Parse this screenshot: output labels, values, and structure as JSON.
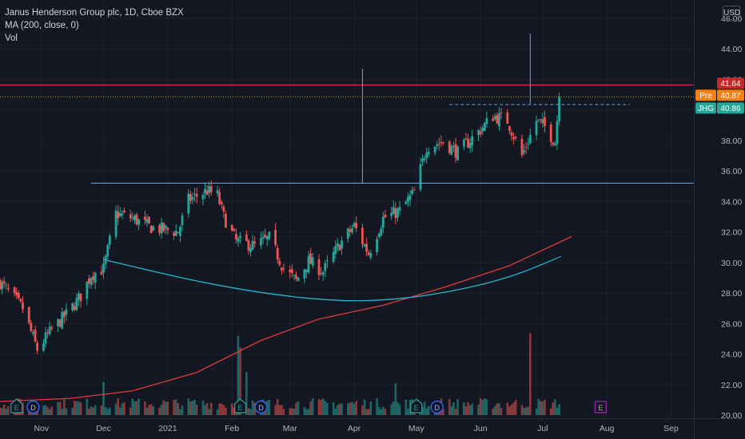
{
  "legend": {
    "symbol_line": "Janus Henderson Group plc, 1D, Cboe BZX",
    "ma_line": "MA (200, close, 0)",
    "vol_line": "Vol"
  },
  "currency_button": "USD",
  "colors": {
    "background": "#131722",
    "grid": "#1e222d",
    "up": "#26a69a",
    "down": "#ef5350",
    "ma": "#e03a3e",
    "pattern": "#2962ff",
    "trendline": "#5fa8e6",
    "cup": "#24b5d1",
    "resistance": "#e03a3e",
    "pre_tag": "#f57f17",
    "symbol_tag": "#26a69a",
    "price_tag_red": "#c62828",
    "earnings": "#26a69a",
    "dividend": "#2962ff",
    "upcoming_earnings": "#9c27b0"
  },
  "chart_data": {
    "type": "candlestick",
    "y_axis": {
      "ylim": [
        19.8,
        47.2
      ],
      "ticks": [
        "20.00",
        "22.00",
        "24.00",
        "26.00",
        "28.00",
        "30.00",
        "32.00",
        "34.00",
        "36.00",
        "38.00",
        "40.00",
        "42.00",
        "44.00",
        "46.00"
      ]
    },
    "x_axis": {
      "labels": [
        "Nov",
        "Dec",
        "2021",
        "Feb",
        "Mar",
        "Apr",
        "May",
        "Jun",
        "Jul",
        "Aug",
        "Sep"
      ],
      "label_dates": [
        "2020-11-01",
        "2020-12-01",
        "2021-01-01",
        "2021-02-01",
        "2021-03-01",
        "2021-04-01",
        "2021-05-01",
        "2021-06-01",
        "2021-07-01",
        "2021-08-01",
        "2021-09-01"
      ],
      "range": [
        "2020-10-12",
        "2021-09-12"
      ]
    },
    "price_tags": [
      {
        "label": "",
        "value": "41.64",
        "price": 41.64,
        "color": "#c62828"
      },
      {
        "label": "Pre",
        "value": "40.87",
        "price": 40.87,
        "color": "#f57f17"
      },
      {
        "label": "JHG",
        "value": "40.86",
        "price": 40.86,
        "color": "#26a69a"
      }
    ],
    "anchors": [
      [
        "2020-10-12",
        28.7
      ],
      [
        "2020-10-23",
        27.0
      ],
      [
        "2020-10-30",
        24.3
      ],
      [
        "2020-11-06",
        25.6
      ],
      [
        "2020-11-13",
        26.6
      ],
      [
        "2020-11-20",
        27.8
      ],
      [
        "2020-11-25",
        29.2
      ],
      [
        "2020-12-01",
        29.6
      ],
      [
        "2020-12-07",
        33.2
      ],
      [
        "2020-12-15",
        32.9
      ],
      [
        "2020-12-24",
        32.3
      ],
      [
        "2021-01-06",
        32.0
      ],
      [
        "2021-01-11",
        34.1
      ],
      [
        "2021-01-20",
        34.7
      ],
      [
        "2021-01-25",
        34.4
      ],
      [
        "2021-01-28",
        33.0
      ],
      [
        "2021-02-03",
        31.4
      ],
      [
        "2021-02-12",
        31.1
      ],
      [
        "2021-02-19",
        31.6
      ],
      [
        "2021-02-26",
        29.6
      ],
      [
        "2021-03-04",
        28.8
      ],
      [
        "2021-03-10",
        30.1
      ],
      [
        "2021-03-17",
        29.4
      ],
      [
        "2021-03-25",
        31.2
      ],
      [
        "2021-04-01",
        32.4
      ],
      [
        "2021-04-08",
        30.6
      ],
      [
        "2021-04-15",
        32.9
      ],
      [
        "2021-04-23",
        33.4
      ],
      [
        "2021-04-30",
        34.6
      ],
      [
        "2021-05-06",
        37.6
      ],
      [
        "2021-05-14",
        37.9
      ],
      [
        "2021-05-21",
        37.2
      ],
      [
        "2021-06-01",
        38.7
      ],
      [
        "2021-06-07",
        39.6
      ],
      [
        "2021-06-14",
        39.3
      ],
      [
        "2021-06-21",
        37.0
      ],
      [
        "2021-06-28",
        39.3
      ],
      [
        "2021-07-02",
        38.9
      ],
      [
        "2021-07-07",
        37.9
      ],
      [
        "2021-07-09",
        40.86
      ]
    ],
    "volume": {
      "spikes": [
        {
          "date": "2020-12-01",
          "height": 0.23,
          "dir": "up"
        },
        {
          "date": "2021-02-04",
          "height": 0.55,
          "dir": "up"
        },
        {
          "date": "2021-02-05",
          "height": 0.47,
          "dir": "down"
        },
        {
          "date": "2021-02-08",
          "height": 0.3,
          "dir": "up"
        },
        {
          "date": "2021-04-21",
          "height": 0.22,
          "dir": "up"
        },
        {
          "date": "2021-06-25",
          "height": 0.57,
          "dir": "down"
        }
      ]
    },
    "moving_average": {
      "name": "MA (200, close, 0)",
      "points": [
        [
          "2020-10-12",
          20.9
        ],
        [
          "2020-11-15",
          21.1
        ],
        [
          "2020-12-15",
          21.6
        ],
        [
          "2021-01-15",
          22.8
        ],
        [
          "2021-02-15",
          24.9
        ],
        [
          "2021-03-15",
          26.3
        ],
        [
          "2021-04-15",
          27.2
        ],
        [
          "2021-05-15",
          28.4
        ],
        [
          "2021-06-15",
          29.8
        ],
        [
          "2021-07-15",
          31.7
        ]
      ]
    },
    "drawings": {
      "resistance": 41.64,
      "handle_high": 40.35,
      "handle_high_from": "2021-05-17",
      "handle_high_to": "2021-08-12",
      "neckline": 35.2,
      "neckline_from": "2020-11-25",
      "neckline_to": "2021-09-12",
      "measured_move_1": {
        "date": "2021-04-05",
        "from": 35.2,
        "to": 42.7
      },
      "measured_move_2": {
        "date": "2021-06-25",
        "from": 40.4,
        "to": 45.0
      },
      "cup": [
        [
          "2020-12-01",
          30.2
        ],
        [
          "2021-01-10",
          28.9
        ],
        [
          "2021-02-15",
          28.0
        ],
        [
          "2021-03-20",
          27.5
        ],
        [
          "2021-04-15",
          27.5
        ],
        [
          "2021-05-15",
          28.0
        ],
        [
          "2021-06-15",
          29.0
        ],
        [
          "2021-07-10",
          30.4
        ]
      ]
    },
    "events": [
      {
        "type": "E",
        "date": "2020-10-20"
      },
      {
        "type": "D",
        "date": "2020-10-28"
      },
      {
        "type": "E",
        "date": "2021-02-05"
      },
      {
        "type": "D",
        "date": "2021-02-15"
      },
      {
        "type": "E",
        "date": "2021-05-01"
      },
      {
        "type": "D",
        "date": "2021-05-11"
      },
      {
        "type": "E",
        "date": "2021-07-29",
        "upcoming": true
      }
    ]
  }
}
